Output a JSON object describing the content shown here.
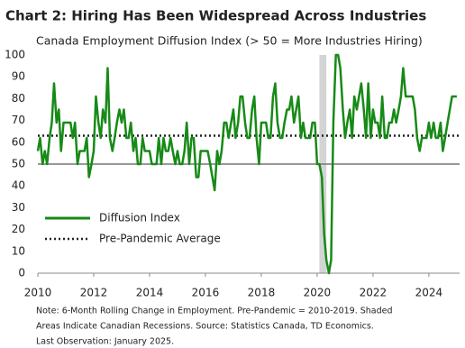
{
  "chart_data": {
    "type": "line",
    "title": "Chart 2: Hiring Has Been Widespread Across Industries",
    "subtitle": "Canada Employment Diffusion Index (> 50 = More Industries Hiring)",
    "notes": [
      "Note: 6-Month Rolling Change in Employment. Pre-Pandemic = 2010-2019. Shaded",
      "Areas Indicate Canadian Recessions. Source: Statistics Canada, TD Economics.",
      "Last Observation: January 2025."
    ],
    "x": [
      2010,
      2010.08,
      2010.17,
      2010.25,
      2010.33,
      2010.42,
      2010.5,
      2010.58,
      2010.67,
      2010.75,
      2010.83,
      2010.92,
      2011,
      2011.08,
      2011.17,
      2011.25,
      2011.33,
      2011.42,
      2011.5,
      2011.58,
      2011.67,
      2011.75,
      2011.83,
      2011.92,
      2012,
      2012.08,
      2012.17,
      2012.25,
      2012.33,
      2012.42,
      2012.5,
      2012.58,
      2012.67,
      2012.75,
      2012.83,
      2012.92,
      2013,
      2013.08,
      2013.17,
      2013.25,
      2013.33,
      2013.42,
      2013.5,
      2013.58,
      2013.67,
      2013.75,
      2013.83,
      2013.92,
      2014,
      2014.08,
      2014.17,
      2014.25,
      2014.33,
      2014.42,
      2014.5,
      2014.58,
      2014.67,
      2014.75,
      2014.83,
      2014.92,
      2015,
      2015.08,
      2015.17,
      2015.25,
      2015.33,
      2015.42,
      2015.5,
      2015.58,
      2015.67,
      2015.75,
      2015.83,
      2015.92,
      2016,
      2016.08,
      2016.17,
      2016.25,
      2016.33,
      2016.42,
      2016.5,
      2016.58,
      2016.67,
      2016.75,
      2016.83,
      2016.92,
      2017,
      2017.08,
      2017.17,
      2017.25,
      2017.33,
      2017.42,
      2017.5,
      2017.58,
      2017.67,
      2017.75,
      2017.83,
      2017.92,
      2018,
      2018.08,
      2018.17,
      2018.25,
      2018.33,
      2018.42,
      2018.5,
      2018.58,
      2018.67,
      2018.75,
      2018.83,
      2018.92,
      2019,
      2019.08,
      2019.17,
      2019.25,
      2019.33,
      2019.42,
      2019.5,
      2019.58,
      2019.67,
      2019.75,
      2019.83,
      2019.92,
      2020,
      2020.08,
      2020.17,
      2020.25,
      2020.33,
      2020.42,
      2020.5,
      2020.58,
      2020.67,
      2020.75,
      2020.83,
      2020.92,
      2021,
      2021.08,
      2021.17,
      2021.25,
      2021.33,
      2021.42,
      2021.5,
      2021.58,
      2021.67,
      2021.75,
      2021.83,
      2021.92,
      2022,
      2022.08,
      2022.17,
      2022.25,
      2022.33,
      2022.42,
      2022.5,
      2022.58,
      2022.67,
      2022.75,
      2022.83,
      2022.92,
      2023,
      2023.08,
      2023.17,
      2023.25,
      2023.33,
      2023.42,
      2023.5,
      2023.58,
      2023.67,
      2023.75,
      2023.83,
      2023.92,
      2024,
      2024.08,
      2024.17,
      2024.25,
      2024.33,
      2024.42,
      2024.5,
      2024.58,
      2024.67,
      2024.75,
      2024.83,
      2024.92,
      2025
    ],
    "series": [
      {
        "name": "Diffusion Index",
        "color": "#178a17",
        "values": [
          56,
          62,
          50,
          56,
          50,
          62,
          69,
          87,
          69,
          75,
          56,
          69,
          69,
          69,
          69,
          62,
          69,
          50,
          56,
          56,
          56,
          62,
          44,
          50,
          56,
          81,
          69,
          62,
          75,
          69,
          94,
          62,
          56,
          62,
          69,
          75,
          69,
          75,
          62,
          62,
          69,
          56,
          62,
          50,
          50,
          62,
          56,
          56,
          56,
          50,
          50,
          50,
          62,
          50,
          62,
          56,
          56,
          62,
          56,
          50,
          56,
          50,
          50,
          56,
          69,
          50,
          62,
          62,
          44,
          44,
          56,
          56,
          56,
          56,
          50,
          44,
          38,
          56,
          50,
          56,
          69,
          69,
          62,
          69,
          75,
          62,
          69,
          81,
          81,
          69,
          62,
          62,
          75,
          81,
          62,
          50,
          69,
          69,
          69,
          62,
          62,
          81,
          87,
          69,
          62,
          62,
          69,
          75,
          75,
          81,
          69,
          75,
          81,
          62,
          69,
          62,
          62,
          62,
          69,
          69,
          50,
          50,
          44,
          18,
          6,
          0,
          6,
          69,
          100,
          100,
          94,
          75,
          62,
          69,
          75,
          62,
          81,
          75,
          81,
          87,
          75,
          62,
          87,
          62,
          75,
          69,
          69,
          62,
          81,
          62,
          62,
          69,
          69,
          75,
          69,
          75,
          81,
          94,
          81,
          81,
          81,
          81,
          75,
          62,
          56,
          62,
          62,
          62,
          69,
          62,
          69,
          62,
          62,
          69,
          56,
          62,
          69,
          75,
          81,
          81,
          81
        ]
      }
    ],
    "reference_lines": [
      {
        "name": "Pre-Pandemic Average",
        "value": 63,
        "color": "#222222",
        "style": "dotted"
      }
    ],
    "threshold": 50,
    "recession": [
      2020.08,
      2020.33
    ],
    "xlim": [
      2010,
      2025.1
    ],
    "xticks": [
      2010,
      2012,
      2014,
      2016,
      2018,
      2020,
      2022,
      2024
    ],
    "ylim": [
      0,
      100
    ],
    "yticks": [
      0,
      10,
      20,
      30,
      40,
      50,
      60,
      70,
      80,
      90,
      100
    ]
  }
}
